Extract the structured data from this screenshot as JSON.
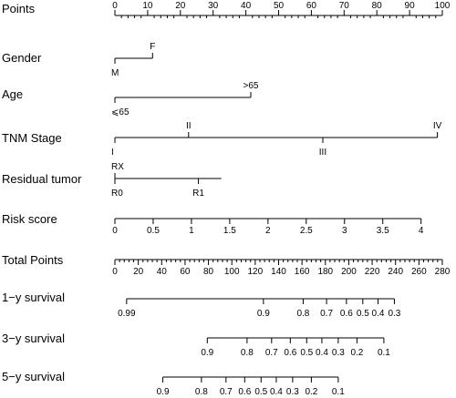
{
  "chart_data": {
    "type": "nomogram",
    "title": "",
    "rows": [
      {
        "id": "points",
        "label": "Points",
        "axis": {
          "min": 0,
          "max": 100,
          "major": [
            0,
            10,
            20,
            30,
            40,
            50,
            60,
            70,
            80,
            90,
            100
          ],
          "minor_step": 2
        }
      },
      {
        "id": "gender",
        "label": "Gender",
        "levels": [
          {
            "label": "M",
            "points": 0,
            "side": "below"
          },
          {
            "label": "F",
            "points": 11.5,
            "side": "above"
          }
        ]
      },
      {
        "id": "age",
        "label": "Age",
        "levels": [
          {
            "label": "⩽65",
            "points": 0,
            "side": "below"
          },
          {
            "label": ">65",
            "points": 41.5,
            "side": "above"
          }
        ]
      },
      {
        "id": "tnm",
        "label": "TNM Stage",
        "levels": [
          {
            "label": "I",
            "points": 0,
            "side": "below"
          },
          {
            "label": "II",
            "points": 22.5,
            "side": "above"
          },
          {
            "label": "III",
            "points": 63.5,
            "side": "below"
          },
          {
            "label": "IV",
            "points": 98.5,
            "side": "above"
          }
        ]
      },
      {
        "id": "residual",
        "label": "Residual tumor",
        "levels": [
          {
            "label": "RX",
            "points": 0,
            "side": "above"
          },
          {
            "label": "R0",
            "points": 0,
            "side": "below"
          },
          {
            "label": "R1",
            "points": 25.5,
            "side": "below"
          }
        ],
        "line_end": 32.5
      },
      {
        "id": "risk",
        "label": "Risk score",
        "axis": {
          "min": 0,
          "max": 4,
          "major": [
            0,
            0.5,
            1,
            1.5,
            2,
            2.5,
            3,
            3.5,
            4
          ],
          "minor_step": 0.5
        },
        "scale_points": [
          0,
          93.5
        ]
      },
      {
        "id": "total",
        "label": "Total Points",
        "axis": {
          "min": 0,
          "max": 280,
          "major": [
            0,
            20,
            40,
            60,
            80,
            100,
            120,
            140,
            160,
            180,
            200,
            220,
            240,
            260,
            280
          ],
          "minor_step": 4
        }
      },
      {
        "id": "surv1",
        "label": "1−y survival",
        "survival_ticks": [
          {
            "label": "0.99",
            "total": 10
          },
          {
            "label": "0.9",
            "total": 127
          },
          {
            "label": "0.8",
            "total": 161
          },
          {
            "label": "0.7",
            "total": 181
          },
          {
            "label": "0.6",
            "total": 198
          },
          {
            "label": "0.5",
            "total": 212
          },
          {
            "label": "0.4",
            "total": 225
          },
          {
            "label": "0.3",
            "total": 239
          }
        ]
      },
      {
        "id": "surv3",
        "label": "3−y survival",
        "survival_ticks": [
          {
            "label": "0.9",
            "total": 79
          },
          {
            "label": "0.8",
            "total": 113
          },
          {
            "label": "0.7",
            "total": 134
          },
          {
            "label": "0.6",
            "total": 150
          },
          {
            "label": "0.5",
            "total": 164
          },
          {
            "label": "0.4",
            "total": 177
          },
          {
            "label": "0.3",
            "total": 191
          },
          {
            "label": "0.2",
            "total": 207
          },
          {
            "label": "0.1",
            "total": 230
          }
        ]
      },
      {
        "id": "surv5",
        "label": "5−y survival",
        "survival_ticks": [
          {
            "label": "0.9",
            "total": 41
          },
          {
            "label": "0.8",
            "total": 74
          },
          {
            "label": "0.7",
            "total": 95
          },
          {
            "label": "0.6",
            "total": 111
          },
          {
            "label": "0.5",
            "total": 125
          },
          {
            "label": "0.4",
            "total": 138
          },
          {
            "label": "0.3",
            "total": 152
          },
          {
            "label": "0.2",
            "total": 168
          },
          {
            "label": "0.1",
            "total": 191
          }
        ]
      }
    ]
  }
}
